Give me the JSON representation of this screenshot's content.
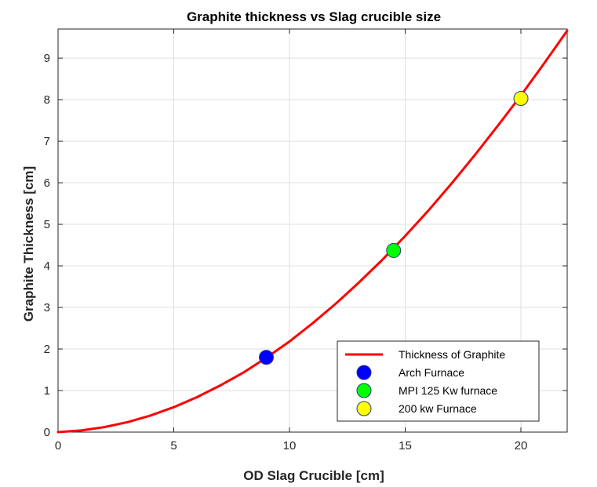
{
  "chart_data": {
    "type": "line",
    "title": "Graphite thickness vs Slag crucible size",
    "xlabel": "OD Slag Crucible [cm]",
    "ylabel": "Graphite Thickness [cm]",
    "xlim": [
      0,
      22
    ],
    "ylim": [
      0,
      9.7
    ],
    "xticks": [
      0,
      5,
      10,
      15,
      20
    ],
    "yticks": [
      0,
      1,
      2,
      3,
      4,
      5,
      6,
      7,
      8,
      9
    ],
    "grid": true,
    "legend_position": "bottom-right",
    "series": [
      {
        "name": "Thickness of Graphite",
        "kind": "line",
        "color": "#ff0000",
        "x": [
          0,
          1,
          2,
          3,
          4,
          5,
          6,
          7,
          8,
          9,
          10,
          11,
          12,
          13,
          14,
          15,
          16,
          17,
          18,
          19,
          20,
          21,
          22
        ],
        "y": [
          0,
          0.04,
          0.12,
          0.24,
          0.4,
          0.6,
          0.84,
          1.12,
          1.43,
          1.79,
          2.18,
          2.62,
          3.09,
          3.6,
          4.14,
          4.72,
          5.33,
          5.98,
          6.66,
          7.37,
          8.1,
          8.87,
          9.66
        ]
      },
      {
        "name": "Arch Furnace",
        "kind": "marker",
        "color": "#0000ff",
        "x": [
          9
        ],
        "y": [
          1.8
        ]
      },
      {
        "name": "MPI 125 Kw furnace",
        "kind": "marker",
        "color": "#00ff00",
        "x": [
          14.5
        ],
        "y": [
          4.37
        ]
      },
      {
        "name": "200 kw Furnace",
        "kind": "marker",
        "color": "#ffff00",
        "x": [
          20
        ],
        "y": [
          8.03
        ]
      }
    ]
  }
}
